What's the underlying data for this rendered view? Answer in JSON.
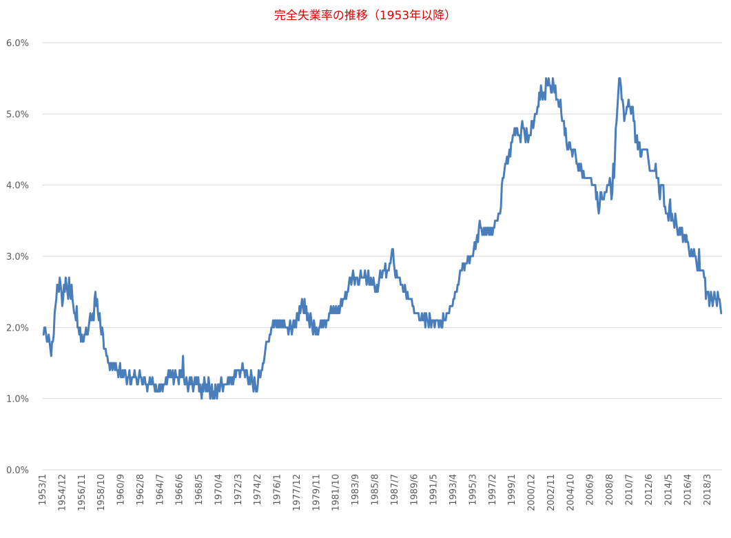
{
  "chart_data": {
    "type": "line",
    "title": "完全失業率の推移（1953年以降）",
    "categories": [
      "1953/1",
      null,
      null,
      null,
      null,
      null,
      null,
      null,
      null,
      null,
      null,
      null,
      null,
      null,
      null,
      null,
      null,
      null,
      null,
      null,
      null,
      null,
      null,
      "1954/12",
      null,
      null,
      null,
      null,
      null,
      null,
      null,
      null,
      null,
      null,
      null,
      null,
      null,
      null,
      null,
      null,
      null,
      null,
      null,
      null,
      null,
      null,
      "1956/11",
      null,
      null,
      null,
      null,
      null,
      null,
      null,
      null,
      null,
      null,
      null,
      null,
      null,
      null,
      null,
      null,
      null,
      null,
      null,
      null,
      null,
      null,
      "1958/10",
      null,
      null,
      null,
      null,
      null,
      null,
      null,
      null,
      null,
      null,
      null,
      null,
      null,
      null,
      null,
      null,
      null,
      null,
      null,
      null,
      null,
      null,
      "1960/9",
      null,
      null,
      null,
      null,
      null,
      null,
      null,
      null,
      null,
      null,
      null,
      null,
      null,
      null,
      null,
      null,
      null,
      null,
      null,
      null,
      null,
      null,
      "1962/8",
      null,
      null,
      null,
      null,
      null,
      null,
      null,
      null,
      null,
      null,
      null,
      null,
      null,
      null,
      null,
      null,
      null,
      null,
      null,
      null,
      null,
      null,
      "1964/7",
      null,
      null,
      null,
      null,
      null,
      null,
      null,
      null,
      null,
      null,
      null,
      null,
      null,
      null,
      null,
      null,
      null,
      null,
      null,
      null,
      null,
      null,
      "1966/6",
      null,
      null,
      null,
      null,
      null,
      null,
      null,
      null,
      null,
      null,
      null,
      null,
      null,
      null,
      null,
      null,
      null,
      null,
      null,
      null,
      null,
      null,
      "1968/5",
      null,
      null,
      null,
      null,
      null,
      null,
      null,
      null,
      null,
      null,
      null,
      null,
      null,
      null,
      null,
      null,
      null,
      null,
      null,
      null,
      null,
      null,
      "1970/4",
      null,
      null,
      null,
      null,
      null,
      null,
      null,
      null,
      null,
      null,
      null,
      null,
      null,
      null,
      null,
      null,
      null,
      null,
      null,
      null,
      null,
      null,
      "1972/3",
      null,
      null,
      null,
      null,
      null,
      null,
      null,
      null,
      null,
      null,
      null,
      null,
      null,
      null,
      null,
      null,
      null,
      null,
      null,
      null,
      null,
      null,
      "1974/2",
      null,
      null,
      null,
      null,
      null,
      null,
      null,
      null,
      null,
      null,
      null,
      null,
      null,
      null,
      null,
      null,
      null,
      null,
      null,
      null,
      null,
      null,
      "1976/1",
      null,
      null,
      null,
      null,
      null,
      null,
      null,
      null,
      null,
      null,
      null,
      null,
      null,
      null,
      null,
      null,
      null,
      null,
      null,
      null,
      null,
      null,
      "1977/12",
      null,
      null,
      null,
      null,
      null,
      null,
      null,
      null,
      null,
      null,
      null,
      null,
      null,
      null,
      null,
      null,
      null,
      null,
      null,
      null,
      null,
      null,
      "1979/11",
      null,
      null,
      null,
      null,
      null,
      null,
      null,
      null,
      null,
      null,
      null,
      null,
      null,
      null,
      null,
      null,
      null,
      null,
      null,
      null,
      null,
      null,
      "1981/10",
      null,
      null,
      null,
      null,
      null,
      null,
      null,
      null,
      null,
      null,
      null,
      null,
      null,
      null,
      null,
      null,
      null,
      null,
      null,
      null,
      null,
      null,
      "1983/9",
      null,
      null,
      null,
      null,
      null,
      null,
      null,
      null,
      null,
      null,
      null,
      null,
      null,
      null,
      null,
      null,
      null,
      null,
      null,
      null,
      null,
      null,
      "1985/8",
      null,
      null,
      null,
      null,
      null,
      null,
      null,
      null,
      null,
      null,
      null,
      null,
      null,
      null,
      null,
      null,
      null,
      null,
      null,
      null,
      null,
      null,
      "1987/7",
      null,
      null,
      null,
      null,
      null,
      null,
      null,
      null,
      null,
      null,
      null,
      null,
      null,
      null,
      null,
      null,
      null,
      null,
      null,
      null,
      null,
      null,
      "1989/6",
      null,
      null,
      null,
      null,
      null,
      null,
      null,
      null,
      null,
      null,
      null,
      null,
      null,
      null,
      null,
      null,
      null,
      null,
      null,
      null,
      null,
      null,
      "1991/5",
      null,
      null,
      null,
      null,
      null,
      null,
      null,
      null,
      null,
      null,
      null,
      null,
      null,
      null,
      null,
      null,
      null,
      null,
      null,
      null,
      null,
      null,
      "1993/4",
      null,
      null,
      null,
      null,
      null,
      null,
      null,
      null,
      null,
      null,
      null,
      null,
      null,
      null,
      null,
      null,
      null,
      null,
      null,
      null,
      null,
      null,
      "1995/3",
      null,
      null,
      null,
      null,
      null,
      null,
      null,
      null,
      null,
      null,
      null,
      null,
      null,
      null,
      null,
      null,
      null,
      null,
      null,
      null,
      null,
      null,
      "1997/2",
      null,
      null,
      null,
      null,
      null,
      null,
      null,
      null,
      null,
      null,
      null,
      null,
      null,
      null,
      null,
      null,
      null,
      null,
      null,
      null,
      null,
      null,
      "1999/1",
      null,
      null,
      null,
      null,
      null,
      null,
      null,
      null,
      null,
      null,
      null,
      null,
      null,
      null,
      null,
      null,
      null,
      null,
      null,
      null,
      null,
      null,
      "2000/12",
      null,
      null,
      null,
      null,
      null,
      null,
      null,
      null,
      null,
      null,
      null,
      null,
      null,
      null,
      null,
      null,
      null,
      null,
      null,
      null,
      null,
      null,
      "2002/11",
      null,
      null,
      null,
      null,
      null,
      null,
      null,
      null,
      null,
      null,
      null,
      null,
      null,
      null,
      null,
      null,
      null,
      null,
      null,
      null,
      null,
      null,
      "2004/10",
      null,
      null,
      null,
      null,
      null,
      null,
      null,
      null,
      null,
      null,
      null,
      null,
      null,
      null,
      null,
      null,
      null,
      null,
      null,
      null,
      null,
      null,
      "2006/9",
      null,
      null,
      null,
      null,
      null,
      null,
      null,
      null,
      null,
      null,
      null,
      null,
      null,
      null,
      null,
      null,
      null,
      null,
      null,
      null,
      null,
      null,
      "2008/8",
      null,
      null,
      null,
      null,
      null,
      null,
      null,
      null,
      null,
      null,
      null,
      null,
      null,
      null,
      null,
      null,
      null,
      null,
      null,
      null,
      null,
      null,
      "2010/7",
      null,
      null,
      null,
      null,
      null,
      null,
      null,
      null,
      null,
      null,
      null,
      null,
      null,
      null,
      null,
      null,
      null,
      null,
      null,
      null,
      null,
      null,
      "2012/6",
      null,
      null,
      null,
      null,
      null,
      null,
      null,
      null,
      null,
      null,
      null,
      null,
      null,
      null,
      null,
      null,
      null,
      null,
      null,
      null,
      null,
      null,
      "2014/5",
      null,
      null,
      null,
      null,
      null,
      null,
      null,
      null,
      null,
      null,
      null,
      null,
      null,
      null,
      null,
      null,
      null,
      null,
      null,
      null,
      null,
      null,
      "2016/4",
      null,
      null,
      null,
      null,
      null,
      null,
      null,
      null,
      null,
      null,
      null,
      null,
      null,
      null,
      null,
      null,
      null,
      null,
      null,
      null,
      null,
      null,
      "2018/3",
      null,
      null,
      null,
      null,
      null,
      null,
      null,
      null,
      null,
      null,
      null,
      null,
      null,
      null,
      null,
      null,
      null
    ],
    "values": [
      1.9,
      1.9,
      2.0,
      2.0,
      1.9,
      1.8,
      1.8,
      1.9,
      1.8,
      1.7,
      1.6,
      1.8,
      1.8,
      1.9,
      2.2,
      2.3,
      2.4,
      2.6,
      2.6,
      2.5,
      2.7,
      2.6,
      2.5,
      2.3,
      2.4,
      2.6,
      2.5,
      2.7,
      2.6,
      2.5,
      2.4,
      2.7,
      2.5,
      2.4,
      2.6,
      2.4,
      2.3,
      2.2,
      2.2,
      2.1,
      2.3,
      2.0,
      2.0,
      1.9,
      2.0,
      1.8,
      1.9,
      1.8,
      1.8,
      1.9,
      1.9,
      2.0,
      1.9,
      1.9,
      2.0,
      2.1,
      2.2,
      2.1,
      2.1,
      2.2,
      2.1,
      2.4,
      2.5,
      2.3,
      2.4,
      2.2,
      2.1,
      2.2,
      2.0,
      1.9,
      2.0,
      1.9,
      1.7,
      1.7,
      1.7,
      1.6,
      1.6,
      1.5,
      1.5,
      1.4,
      1.5,
      1.5,
      1.4,
      1.5,
      1.5,
      1.4,
      1.5,
      1.4,
      1.4,
      1.3,
      1.4,
      1.5,
      1.3,
      1.3,
      1.4,
      1.3,
      1.4,
      1.4,
      1.3,
      1.2,
      1.3,
      1.3,
      1.4,
      1.2,
      1.2,
      1.3,
      1.3,
      1.3,
      1.4,
      1.3,
      1.3,
      1.2,
      1.2,
      1.3,
      1.4,
      1.3,
      1.3,
      1.2,
      1.2,
      1.3,
      1.3,
      1.2,
      1.2,
      1.1,
      1.2,
      1.2,
      1.3,
      1.2,
      1.2,
      1.3,
      1.2,
      1.2,
      1.1,
      1.2,
      1.1,
      1.1,
      1.1,
      1.2,
      1.1,
      1.2,
      1.2,
      1.1,
      1.2,
      1.2,
      1.2,
      1.3,
      1.2,
      1.3,
      1.4,
      1.3,
      1.4,
      1.3,
      1.3,
      1.4,
      1.2,
      1.3,
      1.4,
      1.3,
      1.3,
      1.3,
      1.2,
      1.4,
      1.3,
      1.4,
      1.3,
      1.6,
      1.3,
      1.2,
      1.2,
      1.3,
      1.2,
      1.1,
      1.2,
      1.3,
      1.2,
      1.3,
      1.2,
      1.1,
      1.2,
      1.3,
      1.2,
      1.3,
      1.2,
      1.3,
      1.1,
      1.2,
      1.1,
      1.0,
      1.2,
      1.1,
      1.3,
      1.2,
      1.1,
      1.2,
      1.1,
      1.3,
      1.2,
      1.0,
      1.1,
      1.2,
      1.0,
      1.1,
      1.0,
      1.2,
      1.1,
      1.0,
      1.2,
      1.2,
      1.1,
      1.2,
      1.3,
      1.2,
      1.1,
      1.2,
      1.2,
      1.2,
      1.2,
      1.2,
      1.3,
      1.2,
      1.3,
      1.3,
      1.2,
      1.3,
      1.2,
      1.3,
      1.4,
      1.3,
      1.4,
      1.4,
      1.4,
      1.4,
      1.3,
      1.4,
      1.4,
      1.5,
      1.4,
      1.4,
      1.3,
      1.4,
      1.4,
      1.3,
      1.2,
      1.3,
      1.2,
      1.4,
      1.3,
      1.2,
      1.1,
      1.3,
      1.2,
      1.1,
      1.1,
      1.2,
      1.4,
      1.3,
      1.3,
      1.4,
      1.4,
      1.5,
      1.5,
      1.6,
      1.7,
      1.8,
      1.8,
      1.8,
      1.8,
      1.9,
      1.9,
      2.0,
      2.0,
      2.1,
      2.0,
      2.1,
      2.1,
      2.0,
      2.1,
      2.0,
      2.1,
      2.0,
      2.1,
      2.0,
      2.1,
      2.0,
      2.1,
      2.0,
      2.0,
      2.0,
      2.0,
      1.9,
      2.0,
      2.1,
      2.0,
      1.9,
      2.0,
      2.1,
      2.0,
      2.1,
      2.0,
      2.2,
      2.2,
      2.1,
      2.3,
      2.2,
      2.3,
      2.4,
      2.3,
      2.2,
      2.4,
      2.2,
      2.3,
      2.1,
      2.2,
      2.1,
      2.0,
      2.2,
      2.1,
      2.0,
      1.9,
      2.1,
      2.0,
      1.9,
      2.0,
      1.9,
      1.9,
      2.0,
      2.0,
      2.1,
      2.0,
      2.1,
      2.0,
      2.1,
      2.1,
      2.0,
      2.1,
      2.1,
      2.1,
      2.2,
      2.2,
      2.3,
      2.2,
      2.2,
      2.3,
      2.2,
      2.2,
      2.3,
      2.2,
      2.2,
      2.3,
      2.2,
      2.3,
      2.4,
      2.3,
      2.4,
      2.4,
      2.4,
      2.5,
      2.4,
      2.5,
      2.5,
      2.6,
      2.7,
      2.7,
      2.6,
      2.7,
      2.8,
      2.7,
      2.6,
      2.7,
      2.7,
      2.7,
      2.6,
      2.6,
      2.7,
      2.8,
      2.7,
      2.7,
      2.7,
      2.7,
      2.8,
      2.7,
      2.6,
      2.7,
      2.8,
      2.6,
      2.6,
      2.7,
      2.6,
      2.6,
      2.7,
      2.6,
      2.5,
      2.5,
      2.6,
      2.5,
      2.6,
      2.7,
      2.8,
      2.7,
      2.7,
      2.8,
      2.8,
      2.8,
      2.9,
      2.7,
      2.8,
      2.8,
      2.8,
      2.9,
      2.9,
      3.0,
      3.1,
      3.1,
      2.9,
      2.8,
      2.7,
      2.8,
      2.7,
      2.7,
      2.7,
      2.7,
      2.6,
      2.6,
      2.6,
      2.5,
      2.5,
      2.6,
      2.5,
      2.4,
      2.5,
      2.4,
      2.4,
      2.4,
      2.4,
      2.4,
      2.3,
      2.3,
      2.2,
      2.2,
      2.2,
      2.2,
      2.2,
      2.2,
      2.1,
      2.1,
      2.1,
      2.2,
      2.1,
      2.1,
      2.2,
      2.0,
      2.2,
      2.1,
      2.1,
      2.0,
      2.2,
      2.1,
      2.0,
      2.1,
      2.1,
      2.1,
      2.0,
      2.1,
      2.1,
      2.1,
      2.1,
      2.0,
      2.1,
      2.1,
      2.0,
      2.0,
      2.2,
      2.1,
      2.1,
      2.1,
      2.2,
      2.2,
      2.2,
      2.2,
      2.3,
      2.3,
      2.3,
      2.3,
      2.4,
      2.4,
      2.5,
      2.5,
      2.5,
      2.6,
      2.6,
      2.7,
      2.8,
      2.8,
      2.8,
      2.9,
      2.9,
      2.8,
      2.9,
      2.9,
      2.9,
      3.0,
      3.0,
      2.9,
      3.0,
      3.0,
      3.0,
      3.0,
      3.1,
      3.2,
      3.1,
      3.2,
      3.3,
      3.2,
      3.4,
      3.5,
      3.4,
      3.4,
      3.3,
      3.3,
      3.4,
      3.3,
      3.4,
      3.3,
      3.4,
      3.4,
      3.3,
      3.4,
      3.3,
      3.4,
      3.3,
      3.4,
      3.4,
      3.5,
      3.5,
      3.5,
      3.5,
      3.6,
      3.6,
      3.6,
      3.7,
      4.0,
      4.1,
      4.1,
      4.2,
      4.3,
      4.3,
      4.4,
      4.3,
      4.4,
      4.5,
      4.4,
      4.6,
      4.6,
      4.7,
      4.7,
      4.8,
      4.7,
      4.8,
      4.8,
      4.7,
      4.7,
      4.7,
      4.6,
      4.8,
      4.9,
      4.8,
      4.8,
      4.7,
      4.6,
      4.8,
      4.7,
      4.6,
      4.7,
      4.7,
      4.7,
      4.9,
      4.9,
      4.8,
      4.9,
      5.0,
      5.0,
      5.0,
      5.1,
      5.1,
      5.3,
      5.2,
      5.4,
      5.3,
      5.2,
      5.3,
      5.3,
      5.2,
      5.5,
      5.4,
      5.4,
      5.5,
      5.4,
      5.4,
      5.3,
      5.3,
      5.5,
      5.4,
      5.3,
      5.4,
      5.2,
      5.2,
      5.2,
      5.1,
      5.1,
      5.2,
      5.0,
      4.9,
      4.9,
      4.9,
      4.7,
      4.8,
      4.6,
      4.5,
      4.5,
      4.6,
      4.6,
      4.5,
      4.5,
      4.4,
      4.5,
      4.5,
      4.5,
      4.4,
      4.3,
      4.3,
      4.2,
      4.3,
      4.2,
      4.3,
      4.2,
      4.1,
      4.2,
      4.1,
      4.1,
      4.1,
      4.1,
      4.1,
      4.1,
      4.1,
      4.1,
      4.1,
      4.0,
      4.0,
      4.0,
      4.0,
      4.0,
      3.8,
      3.9,
      3.7,
      3.6,
      3.7,
      3.9,
      3.9,
      3.8,
      3.8,
      3.8,
      3.9,
      3.9,
      3.9,
      4.0,
      4.0,
      4.0,
      4.1,
      4.0,
      3.8,
      3.9,
      4.3,
      4.1,
      4.4,
      4.8,
      4.9,
      5.1,
      5.3,
      5.5,
      5.5,
      5.4,
      5.2,
      5.2,
      5.1,
      4.9,
      5.0,
      5.0,
      5.1,
      5.1,
      5.2,
      5.1,
      5.1,
      5.0,
      5.1,
      5.1,
      4.9,
      4.9,
      4.6,
      4.6,
      4.7,
      4.5,
      4.6,
      4.6,
      4.4,
      4.4,
      4.5,
      4.5,
      4.5,
      4.5,
      4.5,
      4.5,
      4.5,
      4.4,
      4.3,
      4.2,
      4.2,
      4.2,
      4.2,
      4.2,
      4.2,
      4.2,
      4.3,
      4.1,
      4.1,
      4.1,
      3.9,
      3.8,
      4.0,
      4.0,
      4.0,
      4.0,
      3.7,
      3.7,
      3.6,
      3.6,
      3.6,
      3.5,
      3.7,
      3.8,
      3.5,
      3.6,
      3.5,
      3.5,
      3.4,
      3.6,
      3.5,
      3.4,
      3.3,
      3.3,
      3.4,
      3.3,
      3.4,
      3.4,
      3.2,
      3.3,
      3.3,
      3.2,
      3.3,
      3.2,
      3.2,
      3.1,
      3.0,
      3.0,
      3.1,
      3.0,
      3.0,
      3.1,
      3.0,
      3.0,
      2.9,
      2.8,
      2.8,
      3.1,
      2.8,
      2.8,
      2.8,
      2.8,
      2.8,
      2.7,
      2.7,
      2.4,
      2.5,
      2.5,
      2.5,
      2.3,
      2.4,
      2.5,
      2.4,
      2.3,
      2.4,
      2.5,
      2.4,
      2.4,
      2.3,
      2.5,
      2.4,
      2.4,
      2.3,
      2.2,
      2.2
    ],
    "color": "#4a7ebb",
    "ylim": [
      0,
      6
    ],
    "yticks": [
      {
        "value": 0,
        "label": "0.0%"
      },
      {
        "value": 1,
        "label": "1.0%"
      },
      {
        "value": 2,
        "label": "2.0%"
      },
      {
        "value": 3,
        "label": "3.0%"
      },
      {
        "value": 4,
        "label": "4.0%"
      },
      {
        "value": 5,
        "label": "5.0%"
      },
      {
        "value": 6,
        "label": "6.0%"
      }
    ],
    "grid": true
  }
}
